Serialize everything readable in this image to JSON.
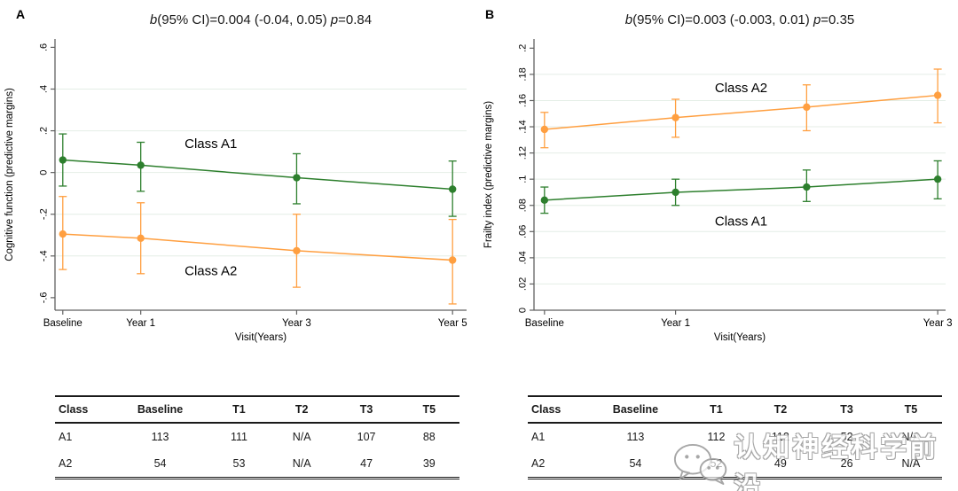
{
  "colors": {
    "green": "#2d7f2d",
    "orange": "#ff9f40",
    "grid": "#e4eee6",
    "axis": "#606060",
    "text": "#000000"
  },
  "watermark": {
    "text": "认知神经科学前沿",
    "logo": "wechat-bubbles-icon"
  },
  "chart_data": [
    {
      "panel_label": "A",
      "type": "line",
      "title": "b(95% CI)=0.004 (-0.04, 0.05) p=0.84",
      "title_parts": [
        {
          "text": "b",
          "italic": true
        },
        {
          "text": "(95% CI)=0.004 (-0.04, 0.05) ",
          "italic": false
        },
        {
          "text": "p",
          "italic": true
        },
        {
          "text": "=0.84",
          "italic": false
        }
      ],
      "xlabel": "Visit(Years)",
      "ylabel": "Cognitive function (predictive margins)",
      "xlim": [
        -0.1,
        5.18
      ],
      "ylim": [
        -0.66,
        0.64
      ],
      "grid": true,
      "legend_position": "inline-labels",
      "xticks": [
        {
          "v": 0,
          "label": "Baseline"
        },
        {
          "v": 1,
          "label": "Year 1"
        },
        {
          "v": 3,
          "label": "Year 3"
        },
        {
          "v": 5,
          "label": "Year 5"
        }
      ],
      "yticks": [
        {
          "v": 0.6,
          "label": ".6"
        },
        {
          "v": 0.4,
          "label": ".4"
        },
        {
          "v": 0.2,
          "label": ".2"
        },
        {
          "v": 0,
          "label": "0"
        },
        {
          "v": -0.2,
          "label": "-.2"
        },
        {
          "v": -0.4,
          "label": "-.4"
        },
        {
          "v": -0.6,
          "label": "-.6"
        }
      ],
      "series": [
        {
          "name": "Class A1",
          "color": "#2d7f2d",
          "x": [
            0,
            1,
            3,
            5
          ],
          "y": [
            0.06,
            0.035,
            -0.025,
            -0.08
          ],
          "ci_low": [
            -0.065,
            -0.09,
            -0.15,
            -0.21
          ],
          "ci_high": [
            0.185,
            0.145,
            0.09,
            0.055
          ]
        },
        {
          "name": "Class A2",
          "color": "#ff9f40",
          "x": [
            0,
            1,
            3,
            5
          ],
          "y": [
            -0.295,
            -0.315,
            -0.375,
            -0.42
          ],
          "ci_low": [
            -0.465,
            -0.485,
            -0.55,
            -0.63
          ],
          "ci_high": [
            -0.115,
            -0.145,
            -0.2,
            -0.225
          ]
        }
      ],
      "labels": [
        {
          "text": "Class A1",
          "x": 1.9,
          "y": 0.14
        },
        {
          "text": "Class A2",
          "x": 1.9,
          "y": -0.47
        }
      ]
    },
    {
      "panel_label": "B",
      "type": "line",
      "title": "b(95% CI)=0.003 (-0.003, 0.01) p=0.35",
      "title_parts": [
        {
          "text": "b",
          "italic": true
        },
        {
          "text": "(95% CI)=0.003 (-0.003, 0.01) ",
          "italic": false
        },
        {
          "text": "p",
          "italic": true
        },
        {
          "text": "=0.35",
          "italic": false
        }
      ],
      "xlabel": "Visit(Years)",
      "ylabel": "Frailty index (predictive margins)",
      "xlim": [
        -0.08,
        3.06
      ],
      "ylim": [
        0,
        0.207
      ],
      "grid": true,
      "legend_position": "inline-labels",
      "xticks": [
        {
          "v": 0,
          "label": "Baseline"
        },
        {
          "v": 1,
          "label": "Year 1"
        },
        {
          "v": 3,
          "label": "Year 3"
        }
      ],
      "yticks": [
        {
          "v": 0.2,
          "label": ".2"
        },
        {
          "v": 0.18,
          "label": ".18"
        },
        {
          "v": 0.16,
          "label": ".16"
        },
        {
          "v": 0.14,
          "label": ".14"
        },
        {
          "v": 0.12,
          "label": ".12"
        },
        {
          "v": 0.1,
          "label": ".1"
        },
        {
          "v": 0.08,
          "label": ".08"
        },
        {
          "v": 0.06,
          "label": ".06"
        },
        {
          "v": 0.04,
          "label": ".04"
        },
        {
          "v": 0.02,
          "label": ".02"
        },
        {
          "v": 0,
          "label": "0"
        }
      ],
      "series": [
        {
          "name": "Class A2",
          "color": "#ff9f40",
          "x": [
            0,
            1,
            2,
            3
          ],
          "y": [
            0.138,
            0.147,
            0.155,
            0.164
          ],
          "ci_low": [
            0.124,
            0.132,
            0.137,
            0.143
          ],
          "ci_high": [
            0.151,
            0.161,
            0.172,
            0.184
          ]
        },
        {
          "name": "Class A1",
          "color": "#2d7f2d",
          "x": [
            0,
            1,
            2,
            3
          ],
          "y": [
            0.084,
            0.09,
            0.094,
            0.1
          ],
          "ci_low": [
            0.074,
            0.08,
            0.083,
            0.085
          ],
          "ci_high": [
            0.094,
            0.1,
            0.107,
            0.114
          ]
        }
      ],
      "labels": [
        {
          "text": "Class A2",
          "x": 1.5,
          "y": 0.17
        },
        {
          "text": "Class A1",
          "x": 1.5,
          "y": 0.068
        }
      ]
    }
  ],
  "tables": [
    {
      "columns": [
        "Class",
        "Baseline",
        "T1",
        "T2",
        "T3",
        "T5"
      ],
      "rows": [
        [
          "A1",
          "113",
          "111",
          "N/A",
          "107",
          "88"
        ],
        [
          "A2",
          "54",
          "53",
          "N/A",
          "47",
          "39"
        ]
      ]
    },
    {
      "columns": [
        "Class",
        "Baseline",
        "T1",
        "T2",
        "T3",
        "T5"
      ],
      "rows": [
        [
          "A1",
          "113",
          "112",
          "112",
          "52",
          "N/A"
        ],
        [
          "A2",
          "54",
          "52",
          "49",
          "26",
          "N/A"
        ]
      ]
    }
  ]
}
